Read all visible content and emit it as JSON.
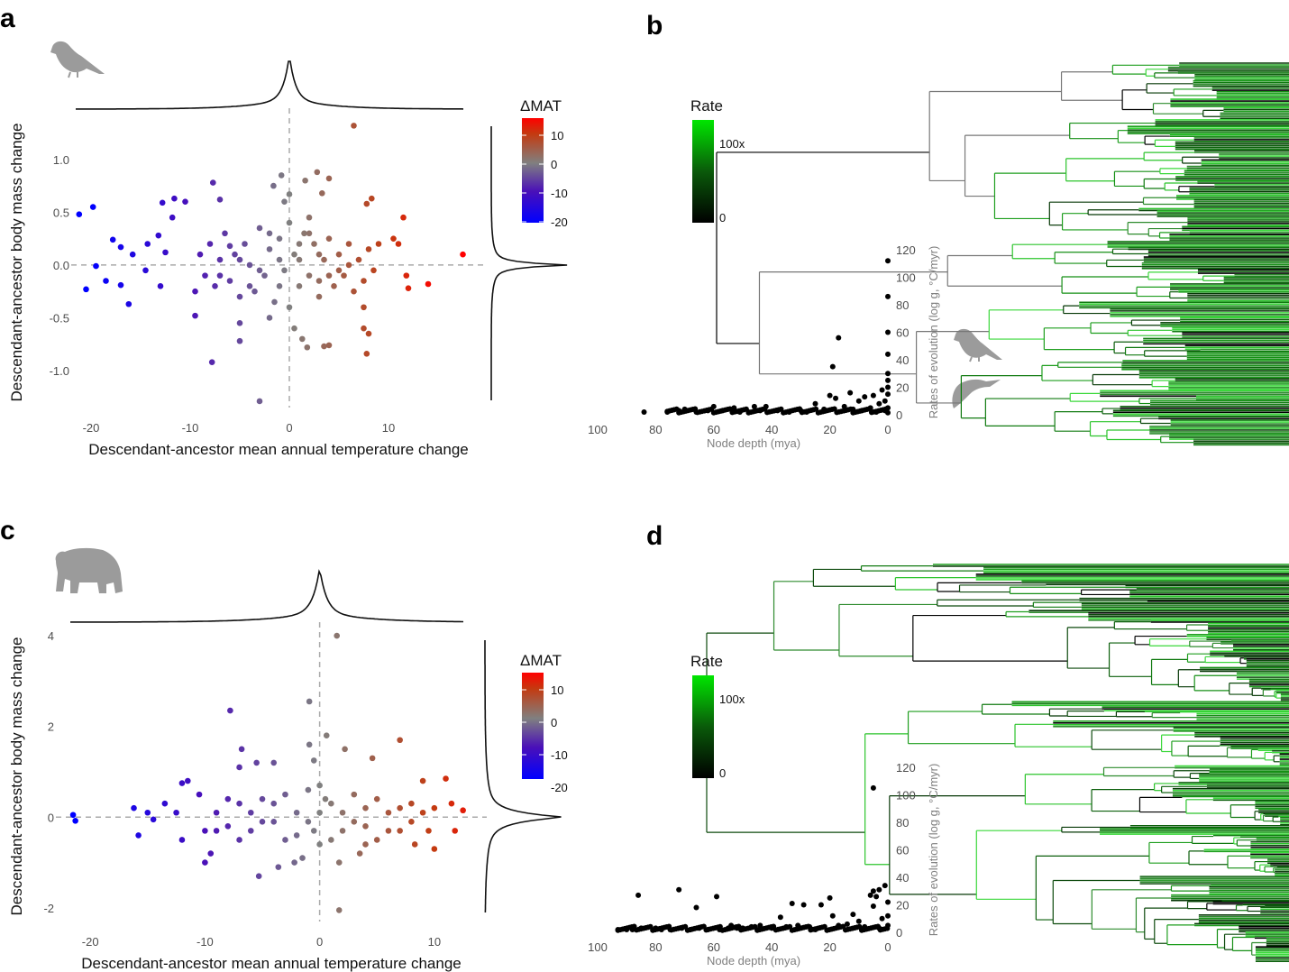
{
  "panel_labels": [
    "a",
    "b",
    "c",
    "d"
  ],
  "colors": {
    "mat_low": "#0000ff",
    "mat_mid_low": "#4a10b8",
    "mat_zero": "#808080",
    "mat_mid_high": "#c43a10",
    "mat_high": "#ff0000",
    "rate_low": "#000000",
    "rate_high": "#00e600",
    "silhouette": "#9b9b9b"
  },
  "icons": [
    "bird-silhouette-icon",
    "swift-silhouette-icon",
    "bear-silhouette-icon"
  ],
  "chart_data": [
    {
      "panel": "a",
      "type": "scatter",
      "xlabel": "Descendant-ancestor mean annual temperature change",
      "ylabel": "Descendant-ancestor body mass change",
      "xticks": [
        -20,
        -10,
        0,
        10
      ],
      "xtick_labels": [
        "-20",
        "-10",
        "0",
        "10"
      ],
      "yticks": [
        1.0,
        0.5,
        0.0,
        -0.5,
        -1.0
      ],
      "ytick_labels": [
        "1.0",
        "0.5",
        "0.0",
        "-0.5",
        "-1.0"
      ],
      "xlim": [
        -22,
        18
      ],
      "ylim": [
        -1.35,
        1.4
      ],
      "reference_lines": {
        "x": 0,
        "y": 0
      },
      "marginal_densities": true,
      "legend": {
        "title": "ΔMAT",
        "labels": [
          "10",
          "0",
          "-10",
          "-20"
        ],
        "range": [
          -20,
          15
        ],
        "placement": "right"
      },
      "points": [
        [
          6.5,
          1.32
        ],
        [
          -21.2,
          0.48
        ],
        [
          -19.8,
          0.55
        ],
        [
          -20.5,
          -0.23
        ],
        [
          -19.5,
          -0.01
        ],
        [
          -18.5,
          -0.15
        ],
        [
          -17.8,
          0.24
        ],
        [
          -16.2,
          -0.37
        ],
        [
          -17,
          -0.19
        ],
        [
          -17,
          0.17
        ],
        [
          -15.8,
          0.1
        ],
        [
          -14.3,
          0.2
        ],
        [
          -14.5,
          -0.05
        ],
        [
          -13.2,
          0.28
        ],
        [
          -12.8,
          0.59
        ],
        [
          -11.6,
          0.63
        ],
        [
          -11.8,
          0.45
        ],
        [
          -10.5,
          0.6
        ],
        [
          -12.5,
          0.12
        ],
        [
          -13,
          -0.2
        ],
        [
          -7.7,
          0.78
        ],
        [
          -7,
          0.62
        ],
        [
          -9.5,
          -0.48
        ],
        [
          -7.8,
          -0.92
        ],
        [
          -5,
          -0.72
        ],
        [
          -5,
          -0.55
        ],
        [
          -3,
          -1.29
        ],
        [
          -0.8,
          0.85
        ],
        [
          -1.6,
          0.75
        ],
        [
          0,
          0.67
        ],
        [
          2.8,
          0.88
        ],
        [
          4,
          0.82
        ],
        [
          1.6,
          0.8
        ],
        [
          3.3,
          0.68
        ],
        [
          8.3,
          0.63
        ],
        [
          7.8,
          0.58
        ],
        [
          11.5,
          0.45
        ],
        [
          17.5,
          0.1
        ],
        [
          14,
          -0.18
        ],
        [
          7.8,
          -0.84
        ],
        [
          1.8,
          -0.78
        ],
        [
          3.5,
          -0.77
        ],
        [
          4,
          -0.76
        ],
        [
          1.3,
          -0.7
        ],
        [
          7.5,
          -0.6
        ],
        [
          8,
          -0.65
        ],
        [
          12,
          -0.22
        ],
        [
          11.8,
          -0.1
        ],
        [
          10.5,
          0.25
        ],
        [
          11,
          0.2
        ],
        [
          -9,
          0.1
        ],
        [
          -8.5,
          -0.1
        ],
        [
          -8,
          0.2
        ],
        [
          -7.5,
          -0.2
        ],
        [
          -7,
          0.05
        ],
        [
          -6.5,
          0.3
        ],
        [
          -6,
          -0.15
        ],
        [
          -5.5,
          0.1
        ],
        [
          -5,
          -0.3
        ],
        [
          -4.5,
          0.2
        ],
        [
          -4,
          0
        ],
        [
          -3.5,
          -0.25
        ],
        [
          -3,
          0.35
        ],
        [
          -2.5,
          -0.1
        ],
        [
          -2,
          0.15
        ],
        [
          -1.5,
          -0.35
        ],
        [
          -1,
          0.25
        ],
        [
          -0.5,
          -0.05
        ],
        [
          0,
          0.4
        ],
        [
          0,
          -0.4
        ],
        [
          0.5,
          0.1
        ],
        [
          1,
          -0.2
        ],
        [
          1.5,
          0.3
        ],
        [
          2,
          -0.1
        ],
        [
          2.5,
          0.2
        ],
        [
          3,
          -0.3
        ],
        [
          3.5,
          0.05
        ],
        [
          4,
          0.25
        ],
        [
          4.5,
          -0.2
        ],
        [
          5,
          0.1
        ],
        [
          5.5,
          -0.1
        ],
        [
          6,
          0.2
        ],
        [
          6.5,
          -0.25
        ],
        [
          7,
          0.05
        ],
        [
          7.5,
          -0.15
        ],
        [
          8,
          0.15
        ],
        [
          8.5,
          -0.05
        ],
        [
          -3,
          -0.05
        ],
        [
          -1,
          0.05
        ],
        [
          1,
          0.05
        ],
        [
          3,
          0.1
        ],
        [
          -5,
          0.05
        ],
        [
          5,
          -0.05
        ],
        [
          2,
          0.45
        ],
        [
          -2,
          -0.5
        ],
        [
          0.5,
          -0.6
        ],
        [
          -0.5,
          0.6
        ],
        [
          7.5,
          -0.4
        ],
        [
          -9.5,
          -0.25
        ],
        [
          9,
          0.2
        ],
        [
          -6,
          0.18
        ],
        [
          -4,
          -0.2
        ],
        [
          -2,
          0.3
        ],
        [
          2,
          0.3
        ],
        [
          4,
          -0.1
        ],
        [
          6,
          0.0
        ],
        [
          -7,
          -0.1
        ],
        [
          -1,
          -0.2
        ],
        [
          1,
          0.2
        ],
        [
          3,
          -0.15
        ]
      ]
    },
    {
      "panel": "b",
      "type": "scatter",
      "xlabel": "Node depth (mya)",
      "ylabel": "Rates of evolution (log g, °C/myr)",
      "xticks": [
        100,
        80,
        60,
        40,
        20,
        0
      ],
      "xtick_labels": [
        "100",
        "80",
        "60",
        "40",
        "20",
        "0"
      ],
      "yticks": [
        120,
        100,
        80,
        60,
        40,
        20,
        0
      ],
      "ytick_labels": [
        "120",
        "100",
        "80",
        "60",
        "40",
        "20",
        "0"
      ],
      "xlim": [
        100,
        0
      ],
      "ylim": [
        0,
        120
      ],
      "x_reversed": true,
      "tree_legend": {
        "title": "Rate",
        "labels": [
          "100x",
          "0"
        ]
      },
      "points": [
        [
          84,
          2
        ],
        [
          76,
          2
        ],
        [
          72,
          3
        ],
        [
          70,
          4
        ],
        [
          66,
          2
        ],
        [
          62,
          3
        ],
        [
          60,
          6
        ],
        [
          57,
          3
        ],
        [
          53,
          5
        ],
        [
          51,
          2
        ],
        [
          46,
          6
        ],
        [
          44,
          3
        ],
        [
          42,
          6
        ],
        [
          38,
          3
        ],
        [
          34,
          2
        ],
        [
          30,
          3
        ],
        [
          25,
          8
        ],
        [
          22,
          4
        ],
        [
          19,
          35
        ],
        [
          17,
          56
        ],
        [
          20,
          14
        ],
        [
          18,
          12
        ],
        [
          13,
          16
        ],
        [
          10,
          10
        ],
        [
          8,
          13
        ],
        [
          5,
          14
        ],
        [
          2,
          18
        ],
        [
          15,
          6
        ],
        [
          12,
          4
        ],
        [
          6,
          5
        ],
        [
          3,
          8
        ],
        [
          1,
          10
        ],
        [
          0,
          112
        ],
        [
          0,
          86
        ],
        [
          0,
          60
        ],
        [
          0,
          44
        ],
        [
          0,
          30
        ],
        [
          0,
          25
        ],
        [
          0,
          20
        ],
        [
          0,
          15
        ],
        [
          0,
          5
        ],
        [
          1,
          3
        ],
        [
          4,
          2
        ],
        [
          9,
          3
        ],
        [
          28,
          2
        ],
        [
          48,
          2
        ]
      ]
    },
    {
      "panel": "c",
      "type": "scatter",
      "xlabel": "Descendant-ancestor mean annual temperature change",
      "ylabel": "Descendant-ancestor body mass change",
      "xticks": [
        -20,
        -10,
        0,
        10
      ],
      "xtick_labels": [
        "-20",
        "-10",
        "0",
        "10"
      ],
      "yticks": [
        4,
        2,
        0,
        -2
      ],
      "ytick_labels": [
        "4",
        "2",
        "0",
        "-2"
      ],
      "xlim": [
        -23,
        13
      ],
      "ylim": [
        -2.3,
        4.1
      ],
      "reference_lines": {
        "x": 0,
        "y": 0
      },
      "marginal_densities": true,
      "legend": {
        "title": "ΔMAT",
        "labels": [
          "10",
          "0",
          "-10",
          "-20"
        ],
        "range": [
          -20,
          12
        ],
        "placement": "right"
      },
      "points": [
        [
          -21.5,
          0.05
        ],
        [
          -21.3,
          -0.08
        ],
        [
          -16.2,
          0.2
        ],
        [
          -15.8,
          -0.4
        ],
        [
          -15,
          0.1
        ],
        [
          -14.5,
          -0.05
        ],
        [
          -13.5,
          0.3
        ],
        [
          -12.5,
          0.1
        ],
        [
          -12,
          0.75
        ],
        [
          -11.5,
          0.8
        ],
        [
          -12,
          -0.5
        ],
        [
          -10.5,
          0.5
        ],
        [
          -10,
          -0.3
        ],
        [
          -7.8,
          2.35
        ],
        [
          -6.8,
          1.5
        ],
        [
          -7,
          1.1
        ],
        [
          -5.5,
          1.2
        ],
        [
          -4,
          1.2
        ],
        [
          -10,
          -1
        ],
        [
          -9.5,
          -0.8
        ],
        [
          -5.3,
          -1.3
        ],
        [
          -3.6,
          -1.1
        ],
        [
          -2.2,
          -1.0
        ],
        [
          -1.5,
          -0.9
        ],
        [
          -0.9,
          2.55
        ],
        [
          -0.9,
          1.6
        ],
        [
          -0.5,
          1.25
        ],
        [
          1.5,
          4
        ],
        [
          0.6,
          1.8
        ],
        [
          2.2,
          1.5
        ],
        [
          4.6,
          1.3
        ],
        [
          7,
          1.7
        ],
        [
          9,
          0.8
        ],
        [
          11,
          0.85
        ],
        [
          12.5,
          0.15
        ],
        [
          11.5,
          0.3
        ],
        [
          10,
          0.2
        ],
        [
          9.5,
          -0.3
        ],
        [
          10,
          -0.7
        ],
        [
          11.8,
          -0.3
        ],
        [
          8.3,
          -0.6
        ],
        [
          3.5,
          -0.8
        ],
        [
          4,
          -0.6
        ],
        [
          1.7,
          -1.0
        ],
        [
          1.7,
          -2.05
        ],
        [
          -9,
          0.1
        ],
        [
          -8,
          -0.2
        ],
        [
          -7,
          0.3
        ],
        [
          -6,
          -0.3
        ],
        [
          -5,
          0.4
        ],
        [
          -4,
          -0.1
        ],
        [
          -3,
          0.5
        ],
        [
          -2,
          -0.4
        ],
        [
          -1,
          0.6
        ],
        [
          0,
          -0.6
        ],
        [
          0,
          0.7
        ],
        [
          1,
          0.3
        ],
        [
          2,
          -0.3
        ],
        [
          3,
          0.5
        ],
        [
          4,
          -0.2
        ],
        [
          5,
          0.4
        ],
        [
          6,
          -0.3
        ],
        [
          7,
          0.2
        ],
        [
          8,
          -0.1
        ],
        [
          -8,
          0.4
        ],
        [
          -6,
          0.1
        ],
        [
          -4,
          0.3
        ],
        [
          -2,
          0.1
        ],
        [
          0,
          0.1
        ],
        [
          2,
          0.1
        ],
        [
          4,
          0.2
        ],
        [
          6,
          0.1
        ],
        [
          8,
          0.3
        ],
        [
          -7,
          -0.5
        ],
        [
          -3,
          -0.5
        ],
        [
          1,
          -0.5
        ],
        [
          5,
          -0.5
        ],
        [
          -5,
          -0.1
        ],
        [
          -1,
          -0.1
        ],
        [
          3,
          -0.1
        ],
        [
          7,
          -0.3
        ],
        [
          9,
          0.1
        ],
        [
          -9,
          -0.3
        ],
        [
          0.5,
          0.4
        ],
        [
          -0.5,
          -0.3
        ]
      ]
    },
    {
      "panel": "d",
      "type": "scatter",
      "xlabel": "Node depth (mya)",
      "ylabel": "Rates of evolution (log g, °C/myr)",
      "xticks": [
        100,
        80,
        60,
        40,
        20,
        0
      ],
      "xtick_labels": [
        "100",
        "80",
        "60",
        "40",
        "20",
        "0"
      ],
      "yticks": [
        120,
        100,
        80,
        60,
        40,
        20,
        0
      ],
      "ytick_labels": [
        "120",
        "100",
        "80",
        "60",
        "40",
        "20",
        "0"
      ],
      "xlim": [
        100,
        0
      ],
      "ylim": [
        0,
        120
      ],
      "x_reversed": true,
      "tree_legend": {
        "title": "Rate",
        "labels": [
          "100x",
          "0"
        ]
      },
      "points": [
        [
          93,
          2
        ],
        [
          90,
          2
        ],
        [
          88,
          2
        ],
        [
          86,
          27
        ],
        [
          85,
          3
        ],
        [
          80,
          3
        ],
        [
          78,
          2
        ],
        [
          75,
          2
        ],
        [
          72,
          31
        ],
        [
          71,
          3
        ],
        [
          68,
          2
        ],
        [
          66,
          18
        ],
        [
          65,
          3
        ],
        [
          62,
          2
        ],
        [
          59,
          26
        ],
        [
          58,
          2
        ],
        [
          55,
          3
        ],
        [
          54,
          5
        ],
        [
          52,
          3
        ],
        [
          50,
          3
        ],
        [
          47,
          4
        ],
        [
          44,
          5
        ],
        [
          40,
          3
        ],
        [
          37,
          11
        ],
        [
          35,
          4
        ],
        [
          33,
          21
        ],
        [
          31,
          5
        ],
        [
          29,
          20
        ],
        [
          27,
          4
        ],
        [
          23,
          20
        ],
        [
          20,
          25
        ],
        [
          19,
          12
        ],
        [
          17,
          5
        ],
        [
          14,
          6
        ],
        [
          12,
          13
        ],
        [
          10,
          8
        ],
        [
          8,
          4
        ],
        [
          6,
          27
        ],
        [
          5,
          105
        ],
        [
          5,
          30
        ],
        [
          5,
          19
        ],
        [
          4,
          26
        ],
        [
          3,
          31
        ],
        [
          1,
          34
        ],
        [
          2,
          10
        ],
        [
          0,
          22
        ],
        [
          0,
          12
        ],
        [
          0,
          5
        ],
        [
          3,
          3
        ],
        [
          9,
          2
        ],
        [
          25,
          2
        ],
        [
          45,
          2
        ]
      ]
    }
  ]
}
